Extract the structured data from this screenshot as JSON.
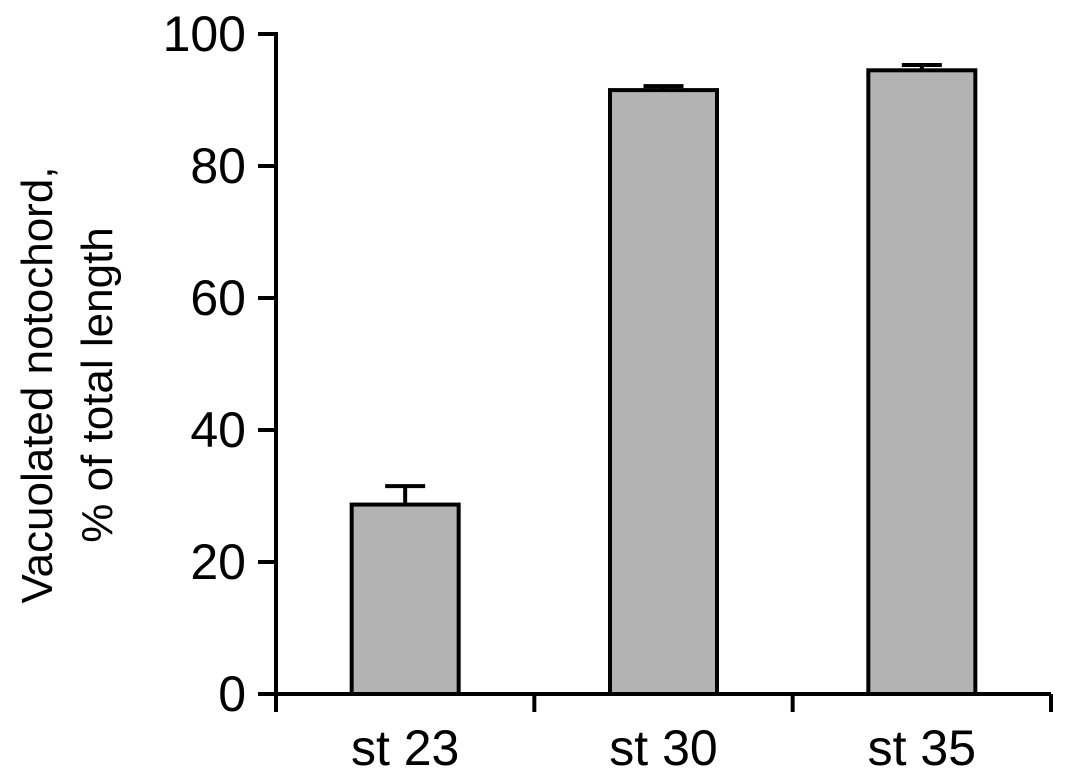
{
  "chart_data": {
    "type": "bar",
    "title": "",
    "xlabel": "",
    "ylabel_lines": [
      "Vacuolated notochord,",
      "% of total length"
    ],
    "categories": [
      "st 23",
      "st 30",
      "st 35"
    ],
    "values": [
      28.7,
      91.5,
      94.5
    ],
    "errors": [
      2.8,
      0.6,
      0.8
    ],
    "ylim": [
      0,
      100
    ],
    "yticks": [
      0,
      20,
      40,
      60,
      80,
      100
    ],
    "grid": false,
    "legend": "none",
    "bar_color": "#b3b3b3",
    "edge_color": "#000000"
  }
}
